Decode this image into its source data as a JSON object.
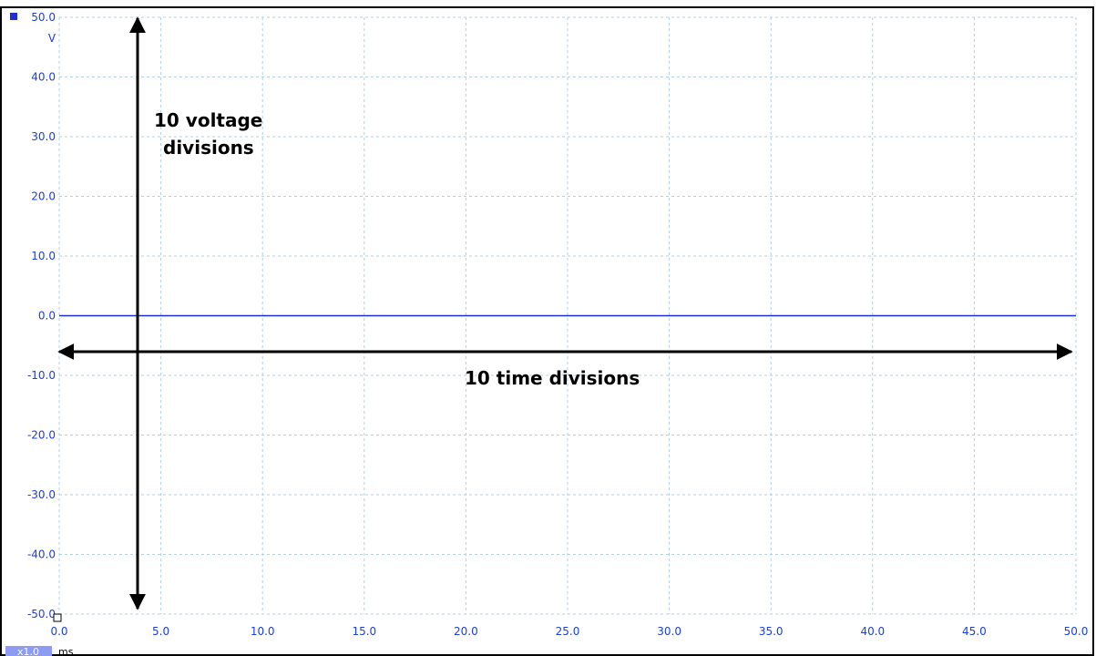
{
  "chart_data": {
    "type": "line",
    "x": [
      0,
      50
    ],
    "series": [
      {
        "values": [
          0,
          0
        ]
      }
    ],
    "xlim": [
      0,
      50
    ],
    "ylim": [
      -50,
      50
    ],
    "x_ticks": [
      "0.0",
      "5.0",
      "10.0",
      "15.0",
      "20.0",
      "25.0",
      "30.0",
      "35.0",
      "40.0",
      "45.0",
      "50.0"
    ],
    "y_ticks": [
      "50.0",
      "40.0",
      "30.0",
      "20.0",
      "10.0",
      "0.0",
      "-10.0",
      "-20.0",
      "-30.0",
      "-40.0",
      "-50.0"
    ],
    "y_unit": "V",
    "x_unit": "ms",
    "zoom_badge": "x1.0",
    "grid": true,
    "annotations": {
      "voltage_line1": "10 voltage",
      "voltage_line2": "divisions",
      "time": "10 time divisions"
    },
    "colors": {
      "trace": "#1f2fd6",
      "tick_labels": "#1b3ee0",
      "grid": "#a9d3ea",
      "badge": "#8d9bf2",
      "frame": "#000000"
    }
  }
}
